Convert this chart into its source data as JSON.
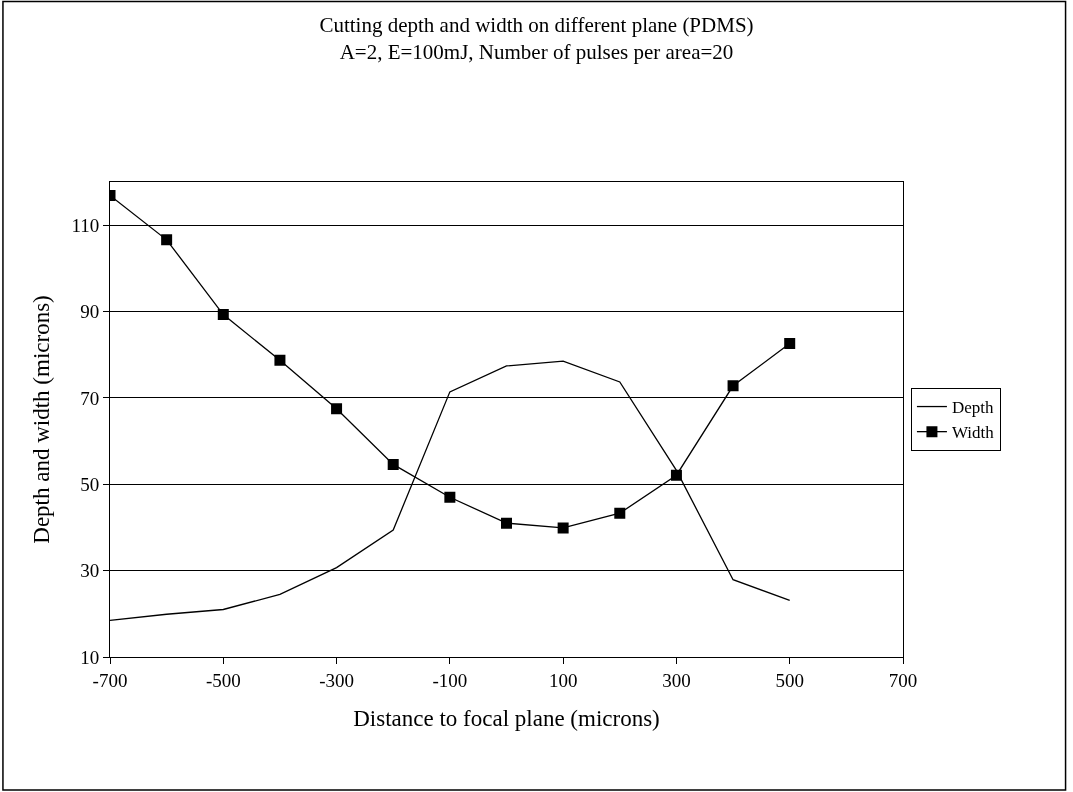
{
  "chart_data": {
    "type": "line",
    "title": "Cutting depth and width on different plane (PDMS)",
    "subtitle": "A=2, E=100mJ, Number of pulses per area=20",
    "xlabel": "Distance to focal plane (microns)",
    "ylabel": "Depth and width (microns)",
    "x": [
      -700,
      -600,
      -500,
      -400,
      -300,
      -200,
      -100,
      0,
      100,
      200,
      300,
      400,
      500
    ],
    "series": [
      {
        "name": "Depth",
        "color": "#000000",
        "marker": "none",
        "values": [
          18.5,
          19.9,
          21,
          24.5,
          30.7,
          39.4,
          71.4,
          77.4,
          78.5,
          73.7,
          53.2,
          27.9,
          23.1
        ]
      },
      {
        "name": "Width",
        "color": "#000000",
        "marker": "square",
        "values": [
          116.9,
          106.6,
          89.3,
          78.7,
          67.5,
          54.6,
          47,
          41,
          39.9,
          43.3,
          52.1,
          72.8,
          82.6
        ]
      }
    ],
    "xlim": [
      -700,
      700
    ],
    "xticks": [
      -700,
      -500,
      -300,
      -100,
      100,
      300,
      500,
      700
    ],
    "ylim": [
      10,
      120
    ],
    "yticks": [
      10,
      30,
      50,
      70,
      90,
      110
    ],
    "grid": "y",
    "legend": "right",
    "line_style": "solid"
  }
}
